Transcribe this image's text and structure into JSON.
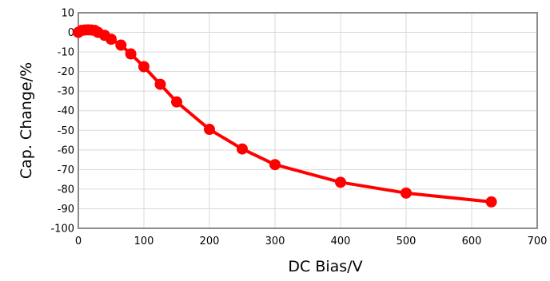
{
  "chart_data": {
    "type": "line",
    "title": "",
    "xlabel": "DC Bias/V",
    "ylabel": "Cap. Change/%",
    "xlim": [
      0,
      700
    ],
    "ylim": [
      -100,
      10
    ],
    "xticks": [
      0,
      100,
      200,
      300,
      400,
      500,
      600,
      700
    ],
    "yticks": [
      10,
      0,
      -10,
      -20,
      -30,
      -40,
      -50,
      -60,
      -70,
      -80,
      -90,
      -100
    ],
    "grid": true,
    "legend": "none",
    "series": [
      {
        "color": "#ff0000",
        "marker": "circle",
        "x": [
          0,
          5,
          10,
          15,
          20,
          25,
          30,
          40,
          50,
          65,
          80,
          100,
          125,
          150,
          200,
          250,
          300,
          400,
          500,
          630
        ],
        "y": [
          0,
          1,
          1.2,
          1.3,
          1.2,
          1,
          0,
          -1.5,
          -3.5,
          -6.5,
          -11,
          -17.5,
          -26.5,
          -35.5,
          -49.5,
          -59.5,
          -67.5,
          -76.5,
          -82,
          -86.5
        ]
      }
    ]
  }
}
